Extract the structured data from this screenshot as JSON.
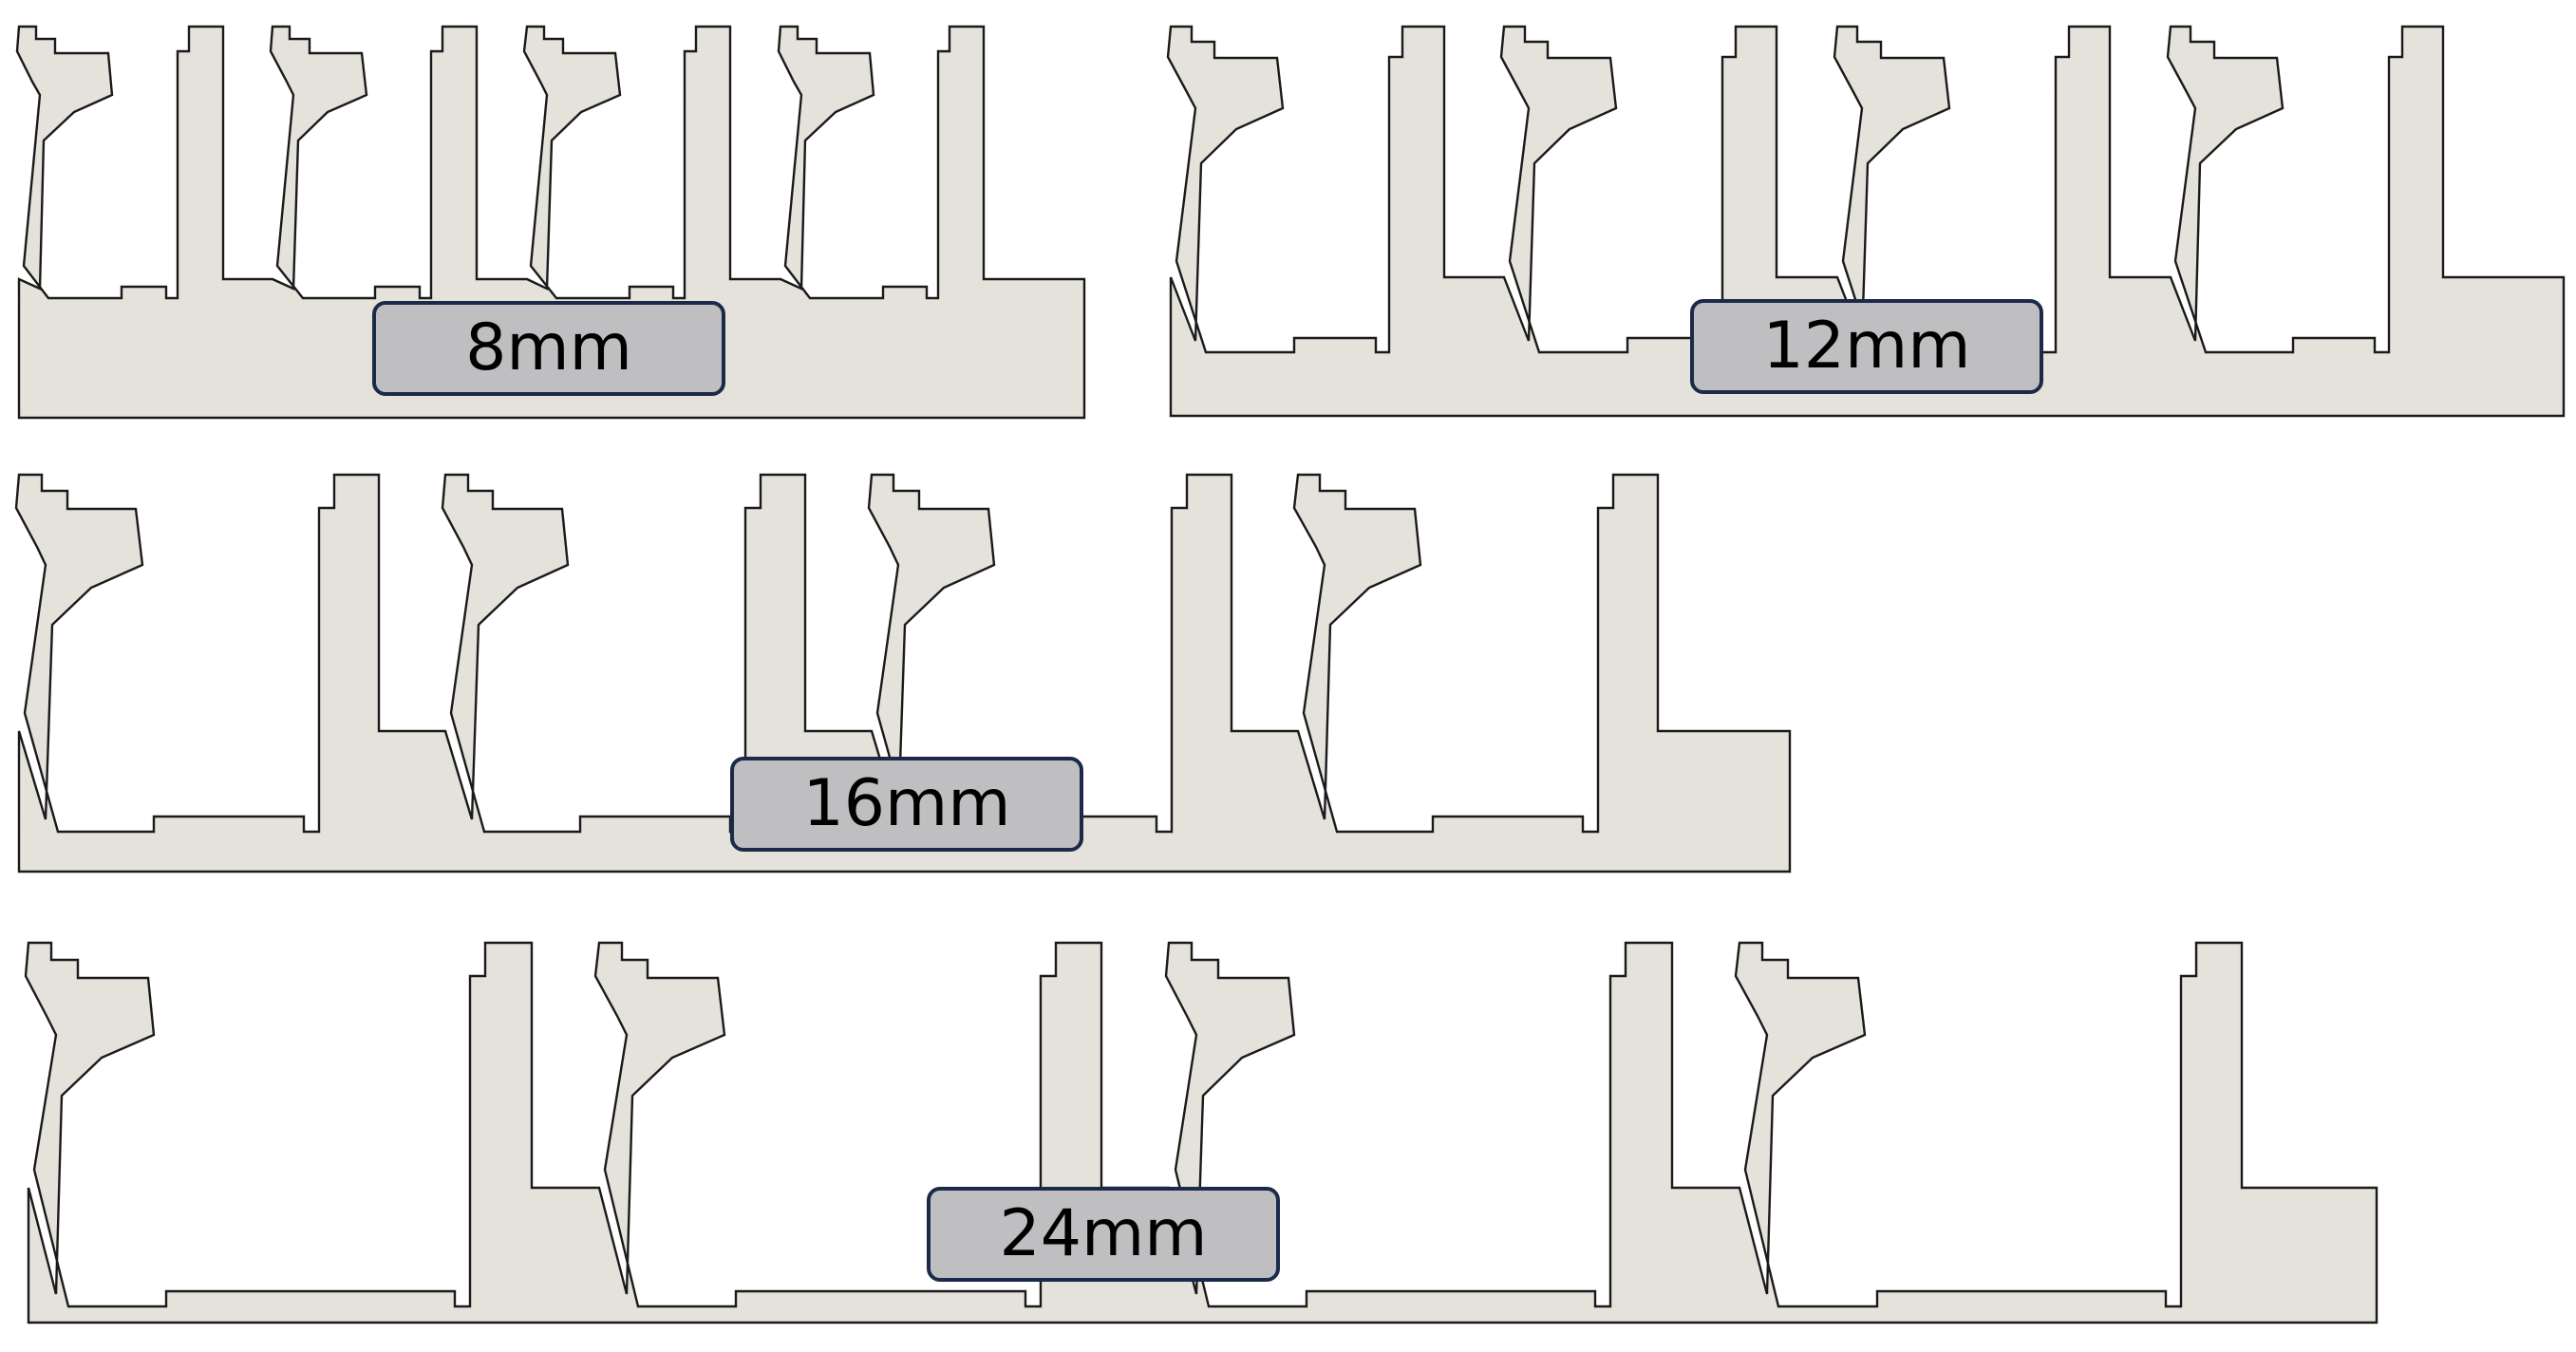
{
  "colors": {
    "profile_fill": "#e4e2da",
    "profile_stroke": "#1a1a1a",
    "label_fill": "#bfbfc1",
    "label_border": "#1c2a4a"
  },
  "profiles": [
    {
      "id": "p8",
      "label": "8mm",
      "spacing_mm": 8,
      "teeth": 4
    },
    {
      "id": "p12",
      "label": "12mm",
      "spacing_mm": 12,
      "teeth": 4
    },
    {
      "id": "p16",
      "label": "16mm",
      "spacing_mm": 16,
      "teeth": 4
    },
    {
      "id": "p24",
      "label": "24mm",
      "spacing_mm": 24,
      "teeth": 4
    }
  ]
}
